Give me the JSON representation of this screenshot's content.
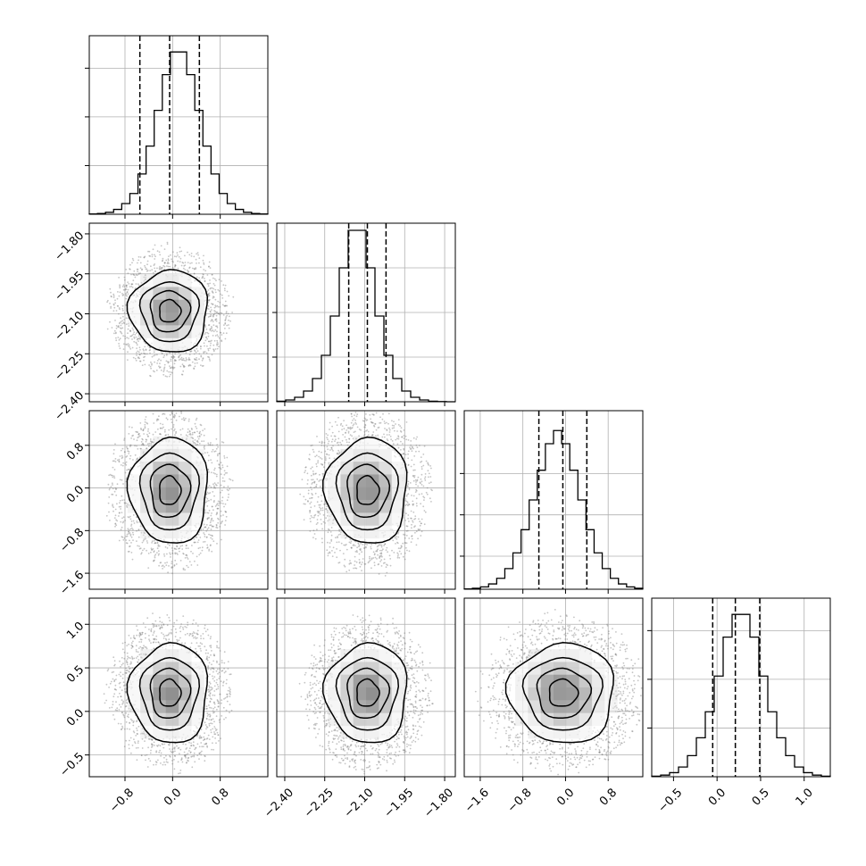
{
  "chart_data": {
    "type": "corner",
    "n_params": 4,
    "grid": true,
    "colors": {
      "line": "#000000",
      "grid": "#b0b0b0",
      "points": "#7f7f7f"
    },
    "params": [
      {
        "range": [
          -1.4,
          1.6
        ],
        "ticks": [
          -0.8,
          0.0,
          0.8
        ],
        "tick_labels": [
          "−0.8",
          "0.0",
          "0.8"
        ],
        "quantiles": [
          -0.55,
          -0.05,
          0.45
        ],
        "mean": -0.05,
        "sd": 0.3
      },
      {
        "range": [
          -2.43,
          -1.76
        ],
        "ticks": [
          -2.4,
          -2.25,
          -2.1,
          -1.95,
          -1.8
        ],
        "tick_labels": [
          "−2.40",
          "−2.25",
          "−2.10",
          "−1.95",
          "−1.80"
        ],
        "quantiles": [
          -2.16,
          -2.09,
          -2.02
        ],
        "mean": -2.09,
        "sd": 0.07
      },
      {
        "range": [
          -1.9,
          1.45
        ],
        "ticks": [
          -1.6,
          -0.8,
          0.0,
          0.8
        ],
        "tick_labels": [
          "−1.6",
          "−0.8",
          "0.0",
          "0.8"
        ],
        "quantiles": [
          -0.5,
          -0.05,
          0.4
        ],
        "mean": -0.05,
        "sd": 0.45
      },
      {
        "range": [
          -0.75,
          1.3
        ],
        "ticks": [
          -0.5,
          0.0,
          0.5,
          1.0
        ],
        "tick_labels": [
          "−0.5",
          "0.0",
          "0.5",
          "1.0"
        ],
        "quantiles": [
          -0.05,
          0.21,
          0.49
        ],
        "mean": 0.21,
        "sd": 0.26
      }
    ],
    "histograms": [
      {
        "param": 0,
        "edges": [
          -1.4,
          1.6
        ],
        "counts": [
          2,
          5,
          12,
          30,
          66,
          128,
          248,
          420,
          640,
          860,
          1000,
          1000,
          860,
          640,
          420,
          248,
          128,
          66,
          30,
          12,
          5,
          2
        ],
        "ymax": 1100,
        "yticks": [
          300,
          600,
          900
        ]
      },
      {
        "param": 1,
        "edges": [
          -2.43,
          -1.76
        ],
        "counts": [
          3,
          10,
          25,
          60,
          130,
          260,
          480,
          750,
          960,
          960,
          750,
          480,
          260,
          130,
          60,
          25,
          10,
          3,
          1,
          0
        ],
        "ymax": 1000,
        "yticks": [
          250,
          500,
          750
        ]
      },
      {
        "param": 2,
        "edges": [
          -1.9,
          1.45
        ],
        "counts": [
          2,
          6,
          14,
          32,
          66,
          125,
          220,
          360,
          540,
          720,
          880,
          960,
          880,
          720,
          540,
          360,
          220,
          125,
          66,
          32,
          14,
          6
        ],
        "ymax": 1080,
        "yticks": [
          200,
          450,
          700
        ]
      },
      {
        "param": 3,
        "edges": [
          -0.75,
          1.3
        ],
        "counts": [
          3,
          10,
          25,
          60,
          130,
          240,
          400,
          620,
          860,
          1000,
          1000,
          860,
          620,
          400,
          240,
          130,
          60,
          25,
          10,
          3
        ],
        "ymax": 1100,
        "yticks": [
          300,
          600,
          900
        ]
      }
    ],
    "pairs": [
      {
        "x": 0,
        "y": 1,
        "center": [
          -0.05,
          -2.09
        ]
      },
      {
        "x": 0,
        "y": 2,
        "center": [
          -0.05,
          -0.05
        ]
      },
      {
        "x": 1,
        "y": 2,
        "center": [
          -2.09,
          -0.05
        ]
      },
      {
        "x": 0,
        "y": 3,
        "center": [
          -0.05,
          0.21
        ]
      },
      {
        "x": 1,
        "y": 3,
        "center": [
          -2.09,
          0.21
        ]
      },
      {
        "x": 2,
        "y": 3,
        "center": [
          -0.05,
          0.21
        ]
      }
    ],
    "contour_levels_sigma": [
      0.6,
      1.1,
      1.6,
      2.2
    ]
  }
}
